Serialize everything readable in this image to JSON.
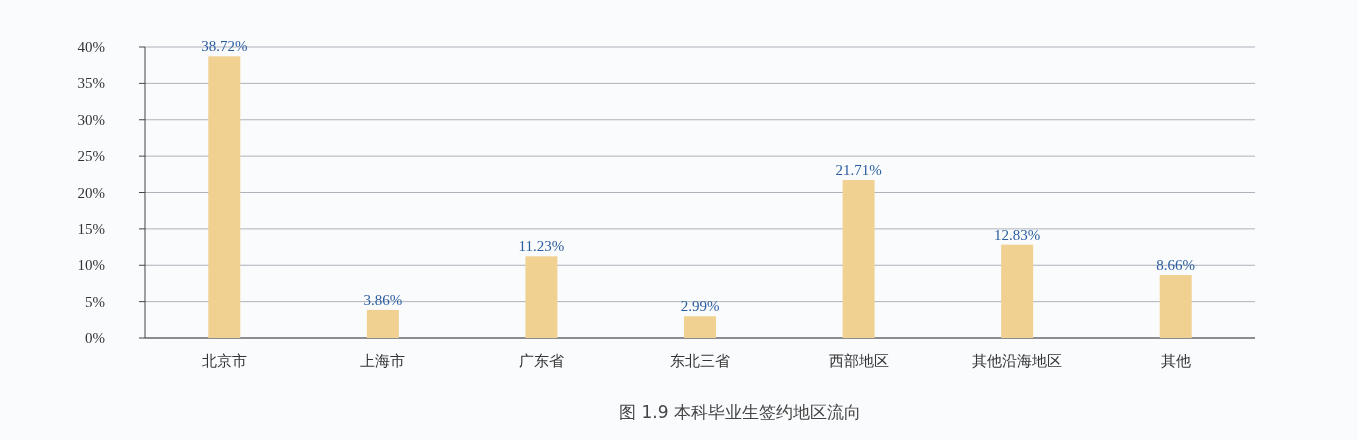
{
  "chart_data": {
    "type": "bar",
    "title": "图 1.9  本科毕业生签约地区流向",
    "categories": [
      "北京市",
      "上海市",
      "广东省",
      "东北三省",
      "西部地区",
      "其他沿海地区",
      "其他"
    ],
    "values": [
      38.72,
      3.86,
      11.23,
      2.99,
      21.71,
      12.83,
      8.66
    ],
    "value_labels": [
      "38.72%",
      "3.86%",
      "11.23%",
      "2.99%",
      "21.71%",
      "12.83%",
      "8.66%"
    ],
    "color": "#f0d191",
    "ylim": [
      0,
      40
    ],
    "yticks": [
      {
        "value": 0,
        "label": "0%"
      },
      {
        "value": 5,
        "label": "5%"
      },
      {
        "value": 10,
        "label": "10%"
      },
      {
        "value": 15,
        "label": "15%"
      },
      {
        "value": 20,
        "label": "20%"
      },
      {
        "value": 25,
        "label": "25%"
      },
      {
        "value": 30,
        "label": "30%"
      },
      {
        "value": 35,
        "label": "35%"
      },
      {
        "value": 40,
        "label": "40%"
      }
    ],
    "grid": "y"
  }
}
